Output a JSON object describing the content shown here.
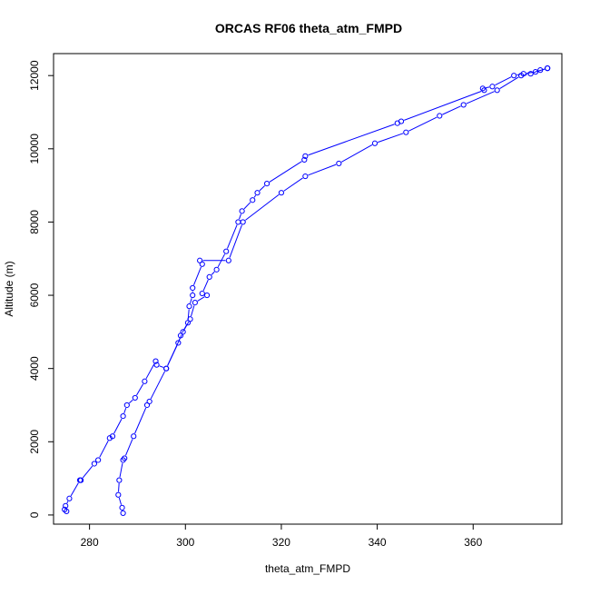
{
  "chart_data": {
    "type": "line",
    "title": "ORCAS RF06 theta_atm_FMPD",
    "xlabel": "theta_atm_FMPD",
    "ylabel": "Altitude (m)",
    "xlim": [
      272.5,
      378.5
    ],
    "ylim": [
      -250,
      12600
    ],
    "x_ticks": [
      280,
      300,
      320,
      340,
      360
    ],
    "y_ticks": [
      0,
      2000,
      4000,
      6000,
      8000,
      10000,
      12000
    ],
    "grid": false,
    "legend": "none",
    "line_color": "#0000ff",
    "marker": "open-circle",
    "series": [
      {
        "points": [
          [
            287.0,
            50
          ],
          [
            286.8,
            200
          ],
          [
            286.0,
            550
          ],
          [
            286.2,
            950
          ],
          [
            287.0,
            1500
          ],
          [
            287.3,
            1550
          ],
          [
            289.2,
            2150
          ],
          [
            292.0,
            3000
          ],
          [
            292.5,
            3100
          ],
          [
            296.0,
            4000
          ],
          [
            299.5,
            5000
          ],
          [
            301.0,
            5350
          ],
          [
            302.0,
            5800
          ],
          [
            304.5,
            6000
          ],
          [
            303.5,
            6050
          ],
          [
            305.0,
            6500
          ],
          [
            306.5,
            6700
          ],
          [
            308.5,
            7200
          ],
          [
            311.0,
            8000
          ],
          [
            311.8,
            8300
          ],
          [
            314.0,
            8600
          ],
          [
            315.0,
            8800
          ],
          [
            317.0,
            9050
          ],
          [
            324.8,
            9700
          ],
          [
            325.0,
            9800
          ],
          [
            344.2,
            10700
          ],
          [
            345.0,
            10750
          ],
          [
            362.3,
            11600
          ],
          [
            362.0,
            11650
          ],
          [
            364.0,
            11700
          ],
          [
            368.5,
            12000
          ],
          [
            370.5,
            12050
          ],
          [
            373.0,
            12100
          ],
          [
            375.5,
            12200
          ]
        ]
      },
      {
        "points": [
          [
            375.5,
            12200
          ],
          [
            374.0,
            12150
          ],
          [
            372.0,
            12050
          ],
          [
            370.0,
            12000
          ],
          [
            365.0,
            11600
          ],
          [
            358.0,
            11200
          ],
          [
            353.0,
            10900
          ],
          [
            346.0,
            10450
          ],
          [
            339.5,
            10150
          ],
          [
            332.0,
            9600
          ],
          [
            325.0,
            9250
          ],
          [
            320.0,
            8800
          ],
          [
            312.0,
            8000
          ],
          [
            309.0,
            6950
          ],
          [
            303.0,
            6950
          ],
          [
            303.5,
            6850
          ],
          [
            301.5,
            6200
          ],
          [
            301.5,
            6000
          ],
          [
            300.8,
            5700
          ],
          [
            300.5,
            5250
          ],
          [
            299.0,
            4900
          ],
          [
            298.5,
            4700
          ],
          [
            296.0,
            4000
          ],
          [
            294.0,
            4100
          ],
          [
            293.8,
            4200
          ],
          [
            291.5,
            3650
          ],
          [
            289.5,
            3200
          ],
          [
            287.8,
            3000
          ],
          [
            287.0,
            2700
          ],
          [
            284.8,
            2150
          ],
          [
            284.2,
            2100
          ],
          [
            281.8,
            1500
          ],
          [
            281.0,
            1400
          ],
          [
            278.2,
            950
          ],
          [
            278.0,
            950
          ],
          [
            275.8,
            450
          ],
          [
            275.0,
            250
          ],
          [
            274.8,
            150
          ],
          [
            275.2,
            100
          ]
        ]
      }
    ]
  }
}
